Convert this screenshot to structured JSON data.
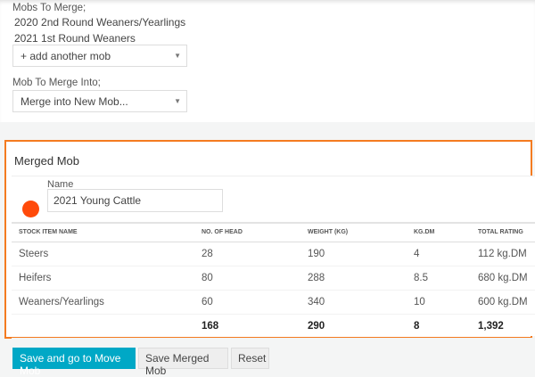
{
  "merge": {
    "mobs_label": "Mobs To Merge;",
    "mobs": [
      "2020 2nd Round Weaners/Yearlings",
      "2021 1st Round Weaners"
    ],
    "add_mob_placeholder": "+ add another mob",
    "into_label": "Mob To Merge Into;",
    "into_value": "Merge into New Mob..."
  },
  "merged": {
    "title": "Merged Mob",
    "name_label": "Name",
    "name_value": "2021 Young Cattle",
    "color": "#ff4a0a",
    "columns": [
      "STOCK ITEM NAME",
      "NO. OF HEAD",
      "WEIGHT (KG)",
      "KG.DM",
      "TOTAL RATING"
    ],
    "rows": [
      [
        "Steers",
        "28",
        "190",
        "4",
        "112 kg.DM"
      ],
      [
        "Heifers",
        "80",
        "288",
        "8.5",
        "680 kg.DM"
      ],
      [
        "Weaners/Yearlings",
        "60",
        "340",
        "10",
        "600 kg.DM"
      ]
    ],
    "totals": [
      "",
      "168",
      "290",
      "8",
      "1,392"
    ]
  },
  "actions": {
    "save_move": "Save and go to Move Mob",
    "save": "Save Merged Mob",
    "reset": "Reset"
  }
}
